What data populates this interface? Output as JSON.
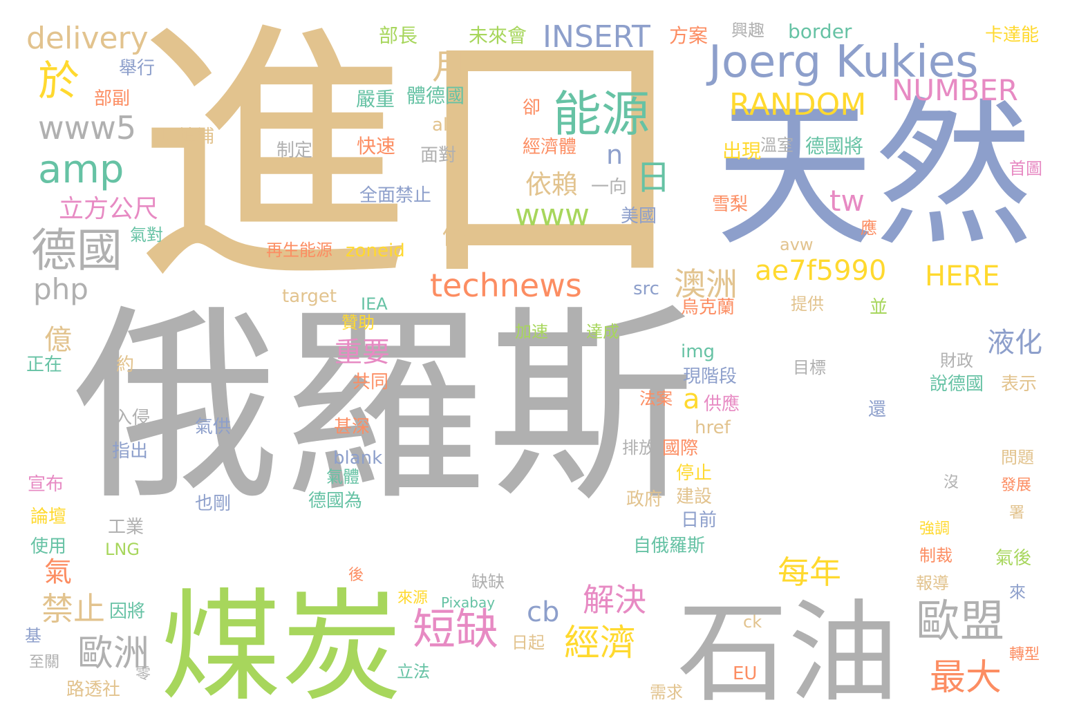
{
  "palette": {
    "gray": "#b0b0b0",
    "tan": "#e2c38e",
    "blue": "#8d9fcb",
    "green": "#a7d65c",
    "teal": "#66c2a4",
    "orange": "#fc8d62",
    "pink": "#e78ac3",
    "yellow": "#ffd92f"
  },
  "words": [
    "俄羅斯",
    "進口",
    "天然",
    "煤炭",
    "石油",
    "Joerg Kukies",
    "能源",
    "delivery",
    "INSERT",
    "NUMBER",
    "RANDOM",
    "www5",
    "amp",
    "於",
    "月",
    "日",
    "德國",
    "php",
    "www",
    "依賴",
    "一向",
    "n",
    "tw",
    "technews",
    "ae7f5990",
    "HERE",
    "澳洲",
    "立方公尺",
    "仍",
    "億",
    "氣",
    "禁止",
    "歐洲",
    "a",
    "重要",
    "短缺",
    "cb",
    "解決",
    "經濟",
    "每年",
    "最大",
    "歐盟",
    "液化",
    "部長",
    "未來會",
    "方案",
    "興趣",
    "border",
    "卡達能",
    "舉行",
    "部副",
    "以填補",
    "嚴重",
    "體德國",
    "alt",
    "快速",
    "制定",
    "面對",
    "卻",
    "經濟體",
    "溫室",
    "出現",
    "德國將",
    "首圖",
    "全面禁止",
    "雪梨",
    "美國",
    "應",
    "avw",
    "zoneid",
    "再生能源",
    "氣對",
    "target",
    "src",
    "IEA",
    "提供",
    "並",
    "烏克蘭",
    "贊助",
    "加速",
    "達成",
    "img",
    "正在",
    "約",
    "共同",
    "現階段",
    "目標",
    "財政",
    "說德國",
    "表示",
    "法案",
    "供應",
    "還",
    "入侵",
    "甚深",
    "氣供",
    "href",
    "指出",
    "排放",
    "國際",
    "blank",
    "氣體",
    "問題",
    "宣布",
    "也剛",
    "停止",
    "建設",
    "沒",
    "政府",
    "發展",
    "德國為",
    "論壇",
    "工業",
    "日前",
    "署",
    "強調",
    "使用",
    "LNG",
    "自俄羅斯",
    "氣後",
    "制裁",
    "後",
    "報導",
    "缺缺",
    "來",
    "來源",
    "Pixabay",
    "因將",
    "ck",
    "基",
    "日起",
    "轉型",
    "至關",
    "零",
    "立法",
    "EU",
    "需求",
    "路透社"
  ]
}
